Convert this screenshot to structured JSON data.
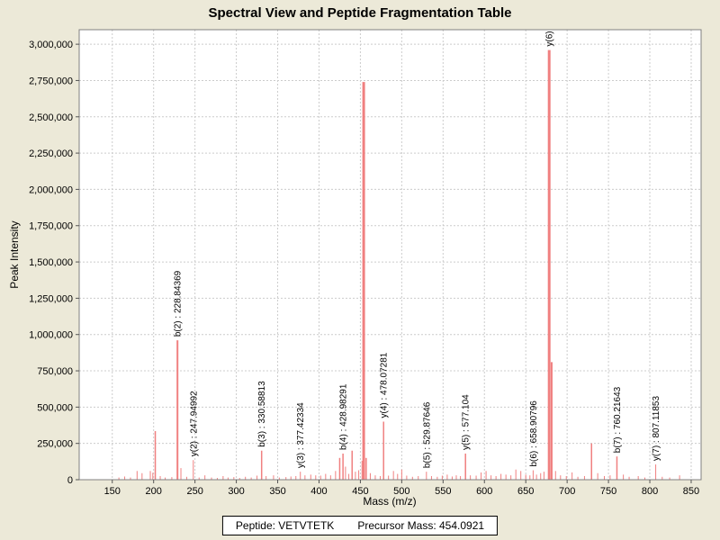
{
  "title": "Spectral View and Peptide Fragmentation Table",
  "status_bar": {
    "peptide": "Peptide: VETVTETK",
    "precursor_mass": "Precursor Mass: 454.0921"
  },
  "colors": {
    "background": "#ece9d8",
    "plot_background": "#ffffff",
    "plot_border": "#808080",
    "grid": "#cccccc",
    "peak": "#f08080",
    "text": "#000000",
    "tick": "#555555"
  },
  "chart_data": {
    "type": "bar",
    "title": "Spectral View and Peptide Fragmentation Table",
    "xlabel": "Mass (m/z)",
    "ylabel": "Peak Intensity",
    "xlim": [
      110,
      862
    ],
    "ylim": [
      0,
      3100000
    ],
    "x_ticks": [
      150,
      200,
      250,
      300,
      350,
      400,
      450,
      500,
      550,
      600,
      650,
      700,
      750,
      800,
      850
    ],
    "y_ticks": [
      0,
      250000,
      500000,
      750000,
      1000000,
      1250000,
      1500000,
      1750000,
      2000000,
      2250000,
      2500000,
      2750000,
      3000000
    ],
    "grid": true,
    "legend": "none",
    "peaks": [
      {
        "mz": 158,
        "i": 15000
      },
      {
        "mz": 165,
        "i": 22000
      },
      {
        "mz": 172,
        "i": 15000
      },
      {
        "mz": 180,
        "i": 60000
      },
      {
        "mz": 186,
        "i": 45000
      },
      {
        "mz": 196,
        "i": 60000
      },
      {
        "mz": 199,
        "i": 48000
      },
      {
        "mz": 202,
        "i": 335000
      },
      {
        "mz": 208,
        "i": 25000
      },
      {
        "mz": 214,
        "i": 15000
      },
      {
        "mz": 222,
        "i": 18000
      },
      {
        "mz": 228.84369,
        "i": 960000,
        "label": "b(2) : 228.84369"
      },
      {
        "mz": 233,
        "i": 80000
      },
      {
        "mz": 240,
        "i": 20000
      },
      {
        "mz": 247.94992,
        "i": 135000,
        "label": "y(2) : 247.94992"
      },
      {
        "mz": 255,
        "i": 15000
      },
      {
        "mz": 262,
        "i": 30000
      },
      {
        "mz": 270,
        "i": 15000
      },
      {
        "mz": 277,
        "i": 12000
      },
      {
        "mz": 284,
        "i": 25000
      },
      {
        "mz": 290,
        "i": 15000
      },
      {
        "mz": 297,
        "i": 18000
      },
      {
        "mz": 304,
        "i": 12000
      },
      {
        "mz": 311,
        "i": 20000
      },
      {
        "mz": 318,
        "i": 15000
      },
      {
        "mz": 325,
        "i": 28000
      },
      {
        "mz": 330.58813,
        "i": 200000,
        "label": "b(3) : 330.58813"
      },
      {
        "mz": 336,
        "i": 25000
      },
      {
        "mz": 345,
        "i": 30000
      },
      {
        "mz": 352,
        "i": 15000
      },
      {
        "mz": 360,
        "i": 18000
      },
      {
        "mz": 366,
        "i": 22000
      },
      {
        "mz": 372,
        "i": 25000
      },
      {
        "mz": 377.42334,
        "i": 55000,
        "label": "y(3) : 377.42334"
      },
      {
        "mz": 383,
        "i": 30000
      },
      {
        "mz": 390,
        "i": 35000
      },
      {
        "mz": 396,
        "i": 30000
      },
      {
        "mz": 402,
        "i": 28000
      },
      {
        "mz": 408,
        "i": 40000
      },
      {
        "mz": 414,
        "i": 30000
      },
      {
        "mz": 420,
        "i": 60000
      },
      {
        "mz": 425,
        "i": 150000
      },
      {
        "mz": 428.98291,
        "i": 180000,
        "label": "b(4) : 428.98291"
      },
      {
        "mz": 432,
        "i": 90000
      },
      {
        "mz": 436,
        "i": 40000
      },
      {
        "mz": 440,
        "i": 200000
      },
      {
        "mz": 444,
        "i": 55000
      },
      {
        "mz": 448,
        "i": 65000
      },
      {
        "mz": 452,
        "i": 130000
      },
      {
        "mz": 454,
        "i": 2740000
      },
      {
        "mz": 457,
        "i": 150000
      },
      {
        "mz": 462,
        "i": 45000
      },
      {
        "mz": 468,
        "i": 30000
      },
      {
        "mz": 474,
        "i": 25000
      },
      {
        "mz": 478.07281,
        "i": 400000,
        "label": "y(4) : 478.07281"
      },
      {
        "mz": 484,
        "i": 28000
      },
      {
        "mz": 490,
        "i": 60000
      },
      {
        "mz": 495,
        "i": 40000
      },
      {
        "mz": 500,
        "i": 70000
      },
      {
        "mz": 506,
        "i": 28000
      },
      {
        "mz": 513,
        "i": 20000
      },
      {
        "mz": 520,
        "i": 25000
      },
      {
        "mz": 529.87646,
        "i": 55000,
        "label": "b(5) : 529.87646"
      },
      {
        "mz": 536,
        "i": 25000
      },
      {
        "mz": 543,
        "i": 20000
      },
      {
        "mz": 549,
        "i": 28000
      },
      {
        "mz": 555,
        "i": 35000
      },
      {
        "mz": 561,
        "i": 22000
      },
      {
        "mz": 566,
        "i": 30000
      },
      {
        "mz": 571,
        "i": 25000
      },
      {
        "mz": 577.104,
        "i": 180000,
        "label": "y(5) : 577.104"
      },
      {
        "mz": 583,
        "i": 30000
      },
      {
        "mz": 590,
        "i": 28000
      },
      {
        "mz": 596,
        "i": 50000
      },
      {
        "mz": 602,
        "i": 60000
      },
      {
        "mz": 608,
        "i": 30000
      },
      {
        "mz": 614,
        "i": 25000
      },
      {
        "mz": 620,
        "i": 40000
      },
      {
        "mz": 626,
        "i": 35000
      },
      {
        "mz": 632,
        "i": 30000
      },
      {
        "mz": 638,
        "i": 70000
      },
      {
        "mz": 644,
        "i": 60000
      },
      {
        "mz": 650,
        "i": 35000
      },
      {
        "mz": 655,
        "i": 30000
      },
      {
        "mz": 658.90796,
        "i": 65000,
        "label": "b(6) : 658.90796"
      },
      {
        "mz": 663,
        "i": 35000
      },
      {
        "mz": 668,
        "i": 45000
      },
      {
        "mz": 672,
        "i": 55000
      },
      {
        "mz": 678.3,
        "i": 2960000,
        "label": "y(6) :"
      },
      {
        "mz": 681.3,
        "i": 810000
      },
      {
        "mz": 686,
        "i": 60000
      },
      {
        "mz": 692,
        "i": 30000
      },
      {
        "mz": 699,
        "i": 25000
      },
      {
        "mz": 706,
        "i": 50000
      },
      {
        "mz": 713,
        "i": 20000
      },
      {
        "mz": 721,
        "i": 25000
      },
      {
        "mz": 729.5,
        "i": 250000
      },
      {
        "mz": 737,
        "i": 45000
      },
      {
        "mz": 745,
        "i": 25000
      },
      {
        "mz": 752,
        "i": 30000
      },
      {
        "mz": 760.21643,
        "i": 160000,
        "label": "b(7) : 760.21643"
      },
      {
        "mz": 768,
        "i": 35000
      },
      {
        "mz": 775,
        "i": 20000
      },
      {
        "mz": 786,
        "i": 25000
      },
      {
        "mz": 794,
        "i": 15000
      },
      {
        "mz": 807.11853,
        "i": 105000,
        "label": "y(7) : 807.11853"
      },
      {
        "mz": 815,
        "i": 20000
      },
      {
        "mz": 824,
        "i": 15000
      },
      {
        "mz": 836,
        "i": 30000
      }
    ]
  }
}
